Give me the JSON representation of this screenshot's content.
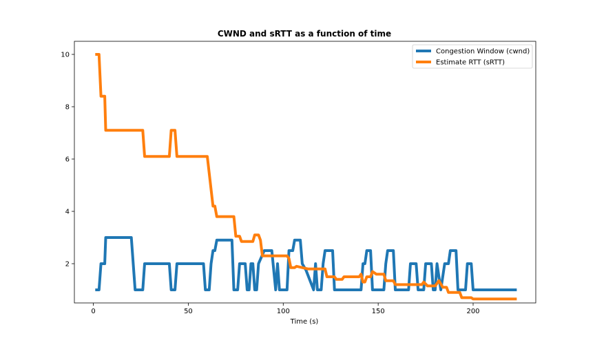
{
  "chart_data": {
    "type": "line",
    "title": "CWND and sRTT as a function of time",
    "xlabel": "Time (s)",
    "ylabel": "",
    "xlim": [
      -10,
      233
    ],
    "ylim": [
      0.5,
      10.5
    ],
    "xticks": [
      0,
      50,
      100,
      150,
      200
    ],
    "yticks": [
      2,
      4,
      6,
      8,
      10
    ],
    "grid": false,
    "legend_position": "top-right",
    "series": [
      {
        "name": "Congestion Window (cwnd)",
        "color": "#1f77b4",
        "points": [
          [
            1,
            1.0
          ],
          [
            3,
            1.0
          ],
          [
            4,
            2.0
          ],
          [
            6,
            2.0
          ],
          [
            6.5,
            3.0
          ],
          [
            20,
            3.0
          ],
          [
            22,
            1.0
          ],
          [
            26,
            1.0
          ],
          [
            27,
            2.0
          ],
          [
            40,
            2.0
          ],
          [
            41,
            1.0
          ],
          [
            43,
            1.0
          ],
          [
            44,
            2.0
          ],
          [
            58,
            2.0
          ],
          [
            59,
            1.0
          ],
          [
            61,
            1.0
          ],
          [
            62,
            2.0
          ],
          [
            63,
            2.5
          ],
          [
            64,
            2.5
          ],
          [
            65,
            2.9
          ],
          [
            73,
            2.9
          ],
          [
            74,
            1.0
          ],
          [
            76,
            1.0
          ],
          [
            77,
            2.0
          ],
          [
            80,
            2.0
          ],
          [
            81,
            1.0
          ],
          [
            82,
            1.0
          ],
          [
            83,
            2.0
          ],
          [
            84,
            2.0
          ],
          [
            85,
            1.0
          ],
          [
            86,
            1.0
          ],
          [
            87,
            2.0
          ],
          [
            90,
            2.5
          ],
          [
            94,
            2.5
          ],
          [
            96,
            1.0
          ],
          [
            97,
            2.0
          ],
          [
            98,
            1.0
          ],
          [
            102,
            1.0
          ],
          [
            103,
            2.5
          ],
          [
            105,
            2.5
          ],
          [
            106,
            2.9
          ],
          [
            109,
            2.9
          ],
          [
            110,
            2.0
          ],
          [
            112,
            1.75
          ],
          [
            116,
            1.0
          ],
          [
            117,
            2.0
          ],
          [
            118,
            1.0
          ],
          [
            120,
            1.0
          ],
          [
            121,
            2.0
          ],
          [
            122,
            2.5
          ],
          [
            126,
            2.5
          ],
          [
            127,
            1.0
          ],
          [
            141,
            1.0
          ],
          [
            142,
            2.0
          ],
          [
            143,
            2.0
          ],
          [
            144,
            2.5
          ],
          [
            146,
            2.5
          ],
          [
            147,
            1.0
          ],
          [
            153,
            1.0
          ],
          [
            154,
            2.0
          ],
          [
            155,
            2.5
          ],
          [
            158,
            2.5
          ],
          [
            159,
            1.0
          ],
          [
            166,
            1.0
          ],
          [
            167,
            2.0
          ],
          [
            170,
            2.0
          ],
          [
            171,
            1.0
          ],
          [
            174,
            1.0
          ],
          [
            175,
            2.0
          ],
          [
            178,
            2.0
          ],
          [
            179,
            1.0
          ],
          [
            180,
            1.0
          ],
          [
            181,
            2.0
          ],
          [
            183,
            1.0
          ],
          [
            185,
            2.0
          ],
          [
            187,
            2.0
          ],
          [
            188,
            2.5
          ],
          [
            191,
            2.5
          ],
          [
            192,
            1.0
          ],
          [
            196,
            1.0
          ],
          [
            197,
            2.0
          ],
          [
            199,
            2.0
          ],
          [
            200,
            1.0
          ],
          [
            223,
            1.0
          ]
        ]
      },
      {
        "name": "Estimate RTT (sRTT)",
        "color": "#ff7f0e",
        "points": [
          [
            1,
            10.0
          ],
          [
            3,
            10.0
          ],
          [
            4,
            8.4
          ],
          [
            6,
            8.4
          ],
          [
            6.5,
            7.1
          ],
          [
            26,
            7.1
          ],
          [
            27,
            6.1
          ],
          [
            40,
            6.1
          ],
          [
            41,
            7.1
          ],
          [
            43,
            7.1
          ],
          [
            44,
            6.1
          ],
          [
            60,
            6.1
          ],
          [
            63,
            4.2
          ],
          [
            64,
            4.2
          ],
          [
            65,
            3.8
          ],
          [
            74,
            3.8
          ],
          [
            75,
            3.05
          ],
          [
            77,
            3.05
          ],
          [
            78,
            2.85
          ],
          [
            84,
            2.85
          ],
          [
            85,
            3.1
          ],
          [
            87,
            3.1
          ],
          [
            88,
            2.9
          ],
          [
            89,
            2.3
          ],
          [
            102,
            2.3
          ],
          [
            103,
            2.2
          ],
          [
            104,
            1.85
          ],
          [
            106,
            1.85
          ],
          [
            107,
            1.9
          ],
          [
            110,
            1.85
          ],
          [
            113,
            1.8
          ],
          [
            122,
            1.8
          ],
          [
            123,
            1.5
          ],
          [
            127,
            1.5
          ],
          [
            128,
            1.4
          ],
          [
            131,
            1.4
          ],
          [
            132,
            1.5
          ],
          [
            140,
            1.5
          ],
          [
            141,
            1.6
          ],
          [
            142,
            1.3
          ],
          [
            143,
            1.3
          ],
          [
            144,
            1.5
          ],
          [
            146,
            1.5
          ],
          [
            147,
            1.7
          ],
          [
            149,
            1.6
          ],
          [
            153,
            1.6
          ],
          [
            154,
            1.35
          ],
          [
            158,
            1.35
          ],
          [
            159,
            1.2
          ],
          [
            173,
            1.2
          ],
          [
            174,
            1.3
          ],
          [
            176,
            1.15
          ],
          [
            180,
            1.15
          ],
          [
            182,
            1.35
          ],
          [
            184,
            1.1
          ],
          [
            186,
            1.1
          ],
          [
            187,
            0.9
          ],
          [
            193,
            0.9
          ],
          [
            194,
            0.7
          ],
          [
            199,
            0.7
          ],
          [
            200,
            0.65
          ],
          [
            223,
            0.65
          ]
        ]
      }
    ]
  }
}
